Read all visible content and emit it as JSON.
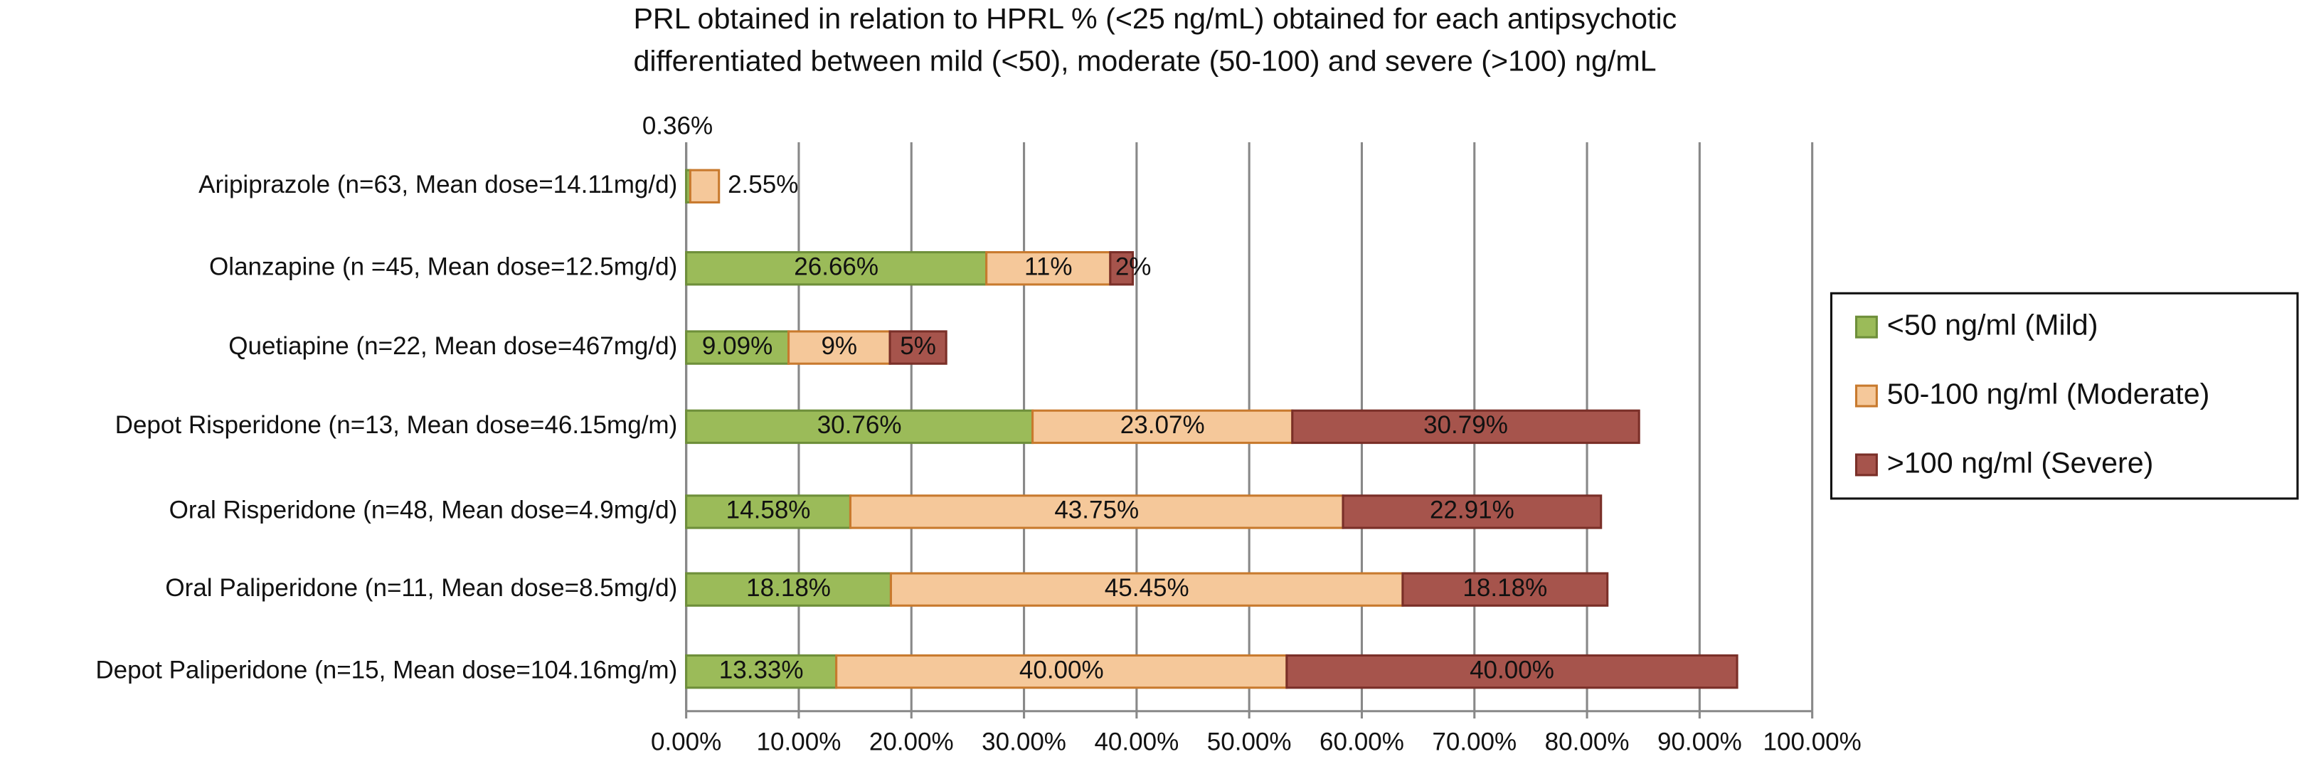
{
  "chart_data": {
    "type": "stacked-bar-horizontal",
    "title": [
      "PRL obtained in relation to HPRL % (<25 ng/mL) obtained for each antipsychotic",
      "differentiated between mild (<50), moderate (50-100) and severe (>100) ng/mL"
    ],
    "categories": [
      "Aripiprazole (n=63, Mean dose=14.11mg/d)",
      "Olanzapine (n =45, Mean dose=12.5mg/d)",
      "Quetiapine (n=22, Mean dose=467mg/d)",
      "Depot Risperidone  (n=13, Mean dose=46.15mg/m)",
      "Oral Risperidone  (n=48, Mean dose=4.9mg/d)",
      "Oral Paliperidone (n=11, Mean dose=8.5mg/d)",
      "Depot Paliperidone  (n=15, Mean dose=104.16mg/m)"
    ],
    "series": [
      {
        "name": "<50 ng/ml (Mild)",
        "color": "#9bbb59",
        "values": [
          0.36,
          26.66,
          9.09,
          30.76,
          14.58,
          18.18,
          13.33
        ],
        "value_labels": [
          "0.36%",
          "26.66%",
          "9.09%",
          "30.76%",
          "14.58%",
          "18.18%",
          "13.33%"
        ]
      },
      {
        "name": "50-100 ng/ml (Moderate)",
        "color": "#f5c89a",
        "values": [
          2.55,
          11,
          9,
          23.07,
          43.75,
          45.45,
          40.0
        ],
        "value_labels": [
          "2.55%",
          "11%",
          "9%",
          "23.07%",
          "43.75%",
          "45.45%",
          "40.00%"
        ]
      },
      {
        "name": ">100 ng/ml (Severe)",
        "color": "#a6544c",
        "values": [
          null,
          2,
          5,
          30.79,
          22.91,
          18.18,
          40.0
        ],
        "value_labels": [
          null,
          "2%",
          "5%",
          "30.79%",
          "22.91%",
          "18.18%",
          "40.00%"
        ]
      }
    ],
    "xlim": [
      0,
      100
    ],
    "xticks": [
      {
        "value": 0,
        "label": "0.00%"
      },
      {
        "value": 10,
        "label": "10.00%"
      },
      {
        "value": 20,
        "label": "20.00%"
      },
      {
        "value": 30,
        "label": "30.00%"
      },
      {
        "value": 40,
        "label": "40.00%"
      },
      {
        "value": 50,
        "label": "50.00%"
      },
      {
        "value": 60,
        "label": "60.00%"
      },
      {
        "value": 70,
        "label": "70.00%"
      },
      {
        "value": 80,
        "label": "80.00%"
      },
      {
        "value": 90,
        "label": "90.00%"
      },
      {
        "value": 100,
        "label": "100.00%"
      }
    ],
    "grid": true,
    "legend": "right"
  }
}
